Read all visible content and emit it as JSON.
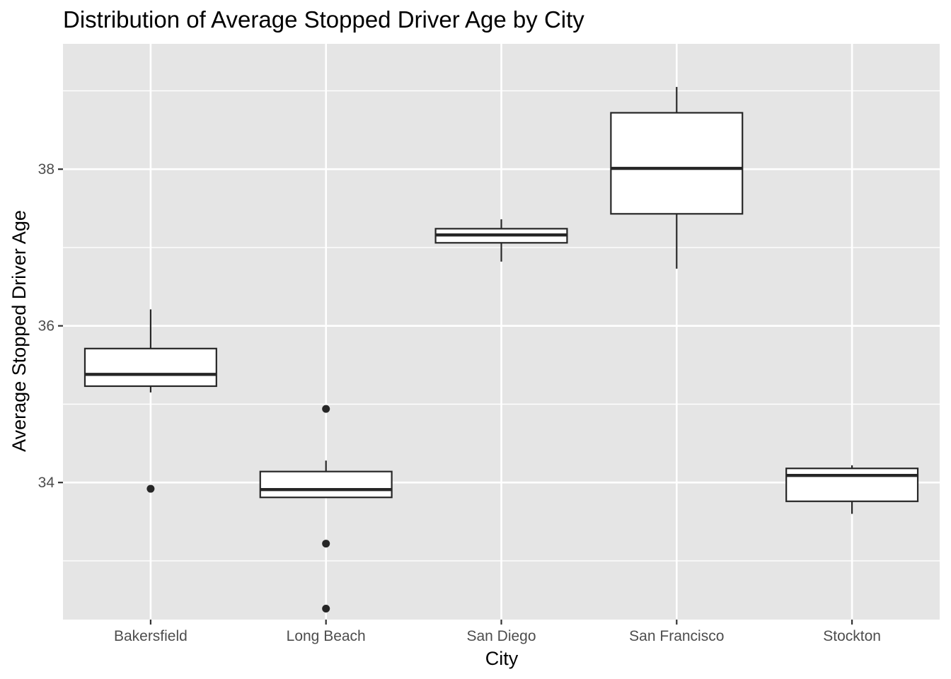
{
  "chart_data": {
    "type": "boxplot",
    "title": "Distribution of Average Stopped Driver Age by City",
    "xlabel": "City",
    "ylabel": "Average Stopped Driver Age",
    "ylim": [
      32.25,
      39.6
    ],
    "yticks": [
      34,
      36,
      38
    ],
    "grid": true,
    "legend": "none",
    "colors": {
      "panel_background": "#e5e5e5",
      "grid_line": "#ffffff",
      "box_fill": "#ffffff",
      "box_stroke": "#262626",
      "outlier": "#262626",
      "tick_text": "#4d4d4d"
    },
    "categories": [
      "Bakersfield",
      "Long Beach",
      "San Diego",
      "San Francisco",
      "Stockton"
    ],
    "boxes": [
      {
        "category": "Bakersfield",
        "whisker_low": 35.15,
        "q1": 35.23,
        "median": 35.38,
        "q3": 35.71,
        "whisker_high": 36.21,
        "outliers": [
          33.92
        ]
      },
      {
        "category": "Long Beach",
        "whisker_low": 33.81,
        "q1": 33.81,
        "median": 33.91,
        "q3": 34.14,
        "whisker_high": 34.28,
        "outliers": [
          34.94,
          33.22,
          32.39
        ]
      },
      {
        "category": "San Diego",
        "whisker_low": 36.82,
        "q1": 37.06,
        "median": 37.16,
        "q3": 37.24,
        "whisker_high": 37.36,
        "outliers": []
      },
      {
        "category": "San Francisco",
        "whisker_low": 36.73,
        "q1": 37.43,
        "median": 38.01,
        "q3": 38.72,
        "whisker_high": 39.05,
        "outliers": []
      },
      {
        "category": "Stockton",
        "whisker_low": 33.6,
        "q1": 33.76,
        "median": 34.09,
        "q3": 34.18,
        "whisker_high": 34.22,
        "outliers": []
      }
    ]
  }
}
